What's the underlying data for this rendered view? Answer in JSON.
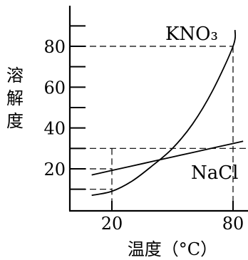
{
  "chart_data": {
    "type": "line",
    "xlabel": "温度（°C）",
    "ylabel": "溶解度",
    "xlim": [
      8,
      85
    ],
    "ylim": [
      0,
      95
    ],
    "x_ticks": [
      20,
      80
    ],
    "y_ticks": [
      20,
      40,
      60,
      80
    ],
    "y_minor_ticks": [
      10,
      30,
      50,
      70,
      90
    ],
    "grid": false,
    "series": [
      {
        "name": "KNO₃",
        "x": [
          10,
          20,
          30,
          40,
          50,
          60,
          70,
          80,
          81
        ],
        "y": [
          7,
          9,
          14,
          21.5,
          30,
          42,
          58.5,
          80,
          88
        ]
      },
      {
        "name": "NaCl",
        "x": [
          10,
          20,
          30,
          40,
          50,
          60,
          70,
          80,
          85
        ],
        "y": [
          17,
          19.2,
          21.4,
          23.6,
          25.8,
          28,
          30.2,
          32.4,
          33.5
        ]
      }
    ],
    "reference_lines": {
      "vertical_x": [
        20,
        80
      ],
      "horizontal_y": [
        10,
        20,
        30,
        80
      ]
    }
  }
}
